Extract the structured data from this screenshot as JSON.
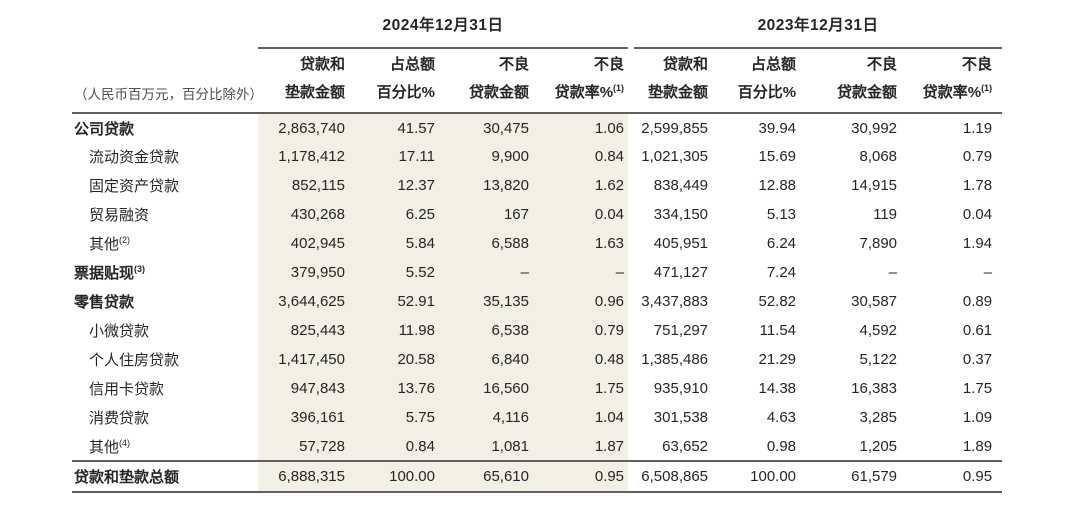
{
  "colors": {
    "highlight_2024_block": "#f3efe4",
    "rule_line": "#5f5f5f",
    "text": "#262626",
    "muted_note": "#4f4f4f"
  },
  "table": {
    "unit_note": "（人民币百万元，百分比除外）",
    "periods": [
      {
        "label": "2024年12月31日"
      },
      {
        "label": "2023年12月31日"
      }
    ],
    "columns": [
      {
        "line1": "贷款和",
        "line2": "垫款金额",
        "sup": ""
      },
      {
        "line1": "占总额",
        "line2": "百分比%",
        "sup": ""
      },
      {
        "line1": "不良",
        "line2": "贷款金额",
        "sup": ""
      },
      {
        "line1": "不良",
        "line2": "贷款率%",
        "sup": "(1)"
      }
    ],
    "rows": [
      {
        "label": "公司贷款",
        "sup": "",
        "bold": true,
        "indent": false,
        "y2024": [
          "2,863,740",
          "41.57",
          "30,475",
          "1.06"
        ],
        "y2023": [
          "2,599,855",
          "39.94",
          "30,992",
          "1.19"
        ]
      },
      {
        "label": "流动资金贷款",
        "sup": "",
        "bold": false,
        "indent": true,
        "y2024": [
          "1,178,412",
          "17.11",
          "9,900",
          "0.84"
        ],
        "y2023": [
          "1,021,305",
          "15.69",
          "8,068",
          "0.79"
        ]
      },
      {
        "label": "固定资产贷款",
        "sup": "",
        "bold": false,
        "indent": true,
        "y2024": [
          "852,115",
          "12.37",
          "13,820",
          "1.62"
        ],
        "y2023": [
          "838,449",
          "12.88",
          "14,915",
          "1.78"
        ]
      },
      {
        "label": "贸易融资",
        "sup": "",
        "bold": false,
        "indent": true,
        "y2024": [
          "430,268",
          "6.25",
          "167",
          "0.04"
        ],
        "y2023": [
          "334,150",
          "5.13",
          "119",
          "0.04"
        ]
      },
      {
        "label": "其他",
        "sup": "(2)",
        "bold": false,
        "indent": true,
        "y2024": [
          "402,945",
          "5.84",
          "6,588",
          "1.63"
        ],
        "y2023": [
          "405,951",
          "6.24",
          "7,890",
          "1.94"
        ]
      },
      {
        "label": "票据贴现",
        "sup": "(3)",
        "bold": true,
        "indent": false,
        "y2024": [
          "379,950",
          "5.52",
          "–",
          "–"
        ],
        "y2023": [
          "471,127",
          "7.24",
          "–",
          "–"
        ]
      },
      {
        "label": "零售贷款",
        "sup": "",
        "bold": true,
        "indent": false,
        "y2024": [
          "3,644,625",
          "52.91",
          "35,135",
          "0.96"
        ],
        "y2023": [
          "3,437,883",
          "52.82",
          "30,587",
          "0.89"
        ]
      },
      {
        "label": "小微贷款",
        "sup": "",
        "bold": false,
        "indent": true,
        "y2024": [
          "825,443",
          "11.98",
          "6,538",
          "0.79"
        ],
        "y2023": [
          "751,297",
          "11.54",
          "4,592",
          "0.61"
        ]
      },
      {
        "label": "个人住房贷款",
        "sup": "",
        "bold": false,
        "indent": true,
        "y2024": [
          "1,417,450",
          "20.58",
          "6,840",
          "0.48"
        ],
        "y2023": [
          "1,385,486",
          "21.29",
          "5,122",
          "0.37"
        ]
      },
      {
        "label": "信用卡贷款",
        "sup": "",
        "bold": false,
        "indent": true,
        "y2024": [
          "947,843",
          "13.76",
          "16,560",
          "1.75"
        ],
        "y2023": [
          "935,910",
          "14.38",
          "16,383",
          "1.75"
        ]
      },
      {
        "label": "消费贷款",
        "sup": "",
        "bold": false,
        "indent": true,
        "y2024": [
          "396,161",
          "5.75",
          "4,116",
          "1.04"
        ],
        "y2023": [
          "301,538",
          "4.63",
          "3,285",
          "1.09"
        ]
      },
      {
        "label": "其他",
        "sup": "(4)",
        "bold": false,
        "indent": true,
        "y2024": [
          "57,728",
          "0.84",
          "1,081",
          "1.87"
        ],
        "y2023": [
          "63,652",
          "0.98",
          "1,205",
          "1.89"
        ]
      }
    ],
    "total_row": {
      "label": "贷款和垫款总额",
      "y2024": [
        "6,888,315",
        "100.00",
        "65,610",
        "0.95"
      ],
      "y2023": [
        "6,508,865",
        "100.00",
        "61,579",
        "0.95"
      ]
    }
  }
}
